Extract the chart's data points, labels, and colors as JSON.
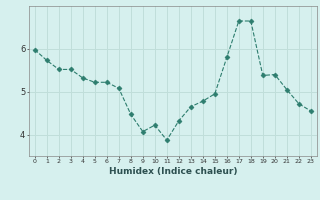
{
  "x": [
    0,
    1,
    2,
    3,
    4,
    5,
    6,
    7,
    8,
    9,
    10,
    11,
    12,
    13,
    14,
    15,
    16,
    17,
    18,
    19,
    20,
    21,
    22,
    23
  ],
  "y": [
    5.98,
    5.73,
    5.52,
    5.52,
    5.32,
    5.22,
    5.22,
    5.08,
    4.47,
    4.07,
    4.22,
    3.87,
    4.32,
    4.65,
    4.78,
    4.95,
    5.8,
    6.65,
    6.65,
    5.38,
    5.4,
    5.05,
    4.72,
    4.55
  ],
  "xlabel": "Humidex (Indice chaleur)",
  "ylabel": "",
  "line_color": "#2d7d6e",
  "marker": "D",
  "marker_size": 2.5,
  "bg_color": "#d6f0ee",
  "grid_color": "#c0deda",
  "ylim": [
    3.5,
    7.0
  ],
  "xlim": [
    -0.5,
    23.5
  ],
  "yticks": [
    4,
    5,
    6
  ],
  "xticks": [
    0,
    1,
    2,
    3,
    4,
    5,
    6,
    7,
    8,
    9,
    10,
    11,
    12,
    13,
    14,
    15,
    16,
    17,
    18,
    19,
    20,
    21,
    22,
    23
  ]
}
